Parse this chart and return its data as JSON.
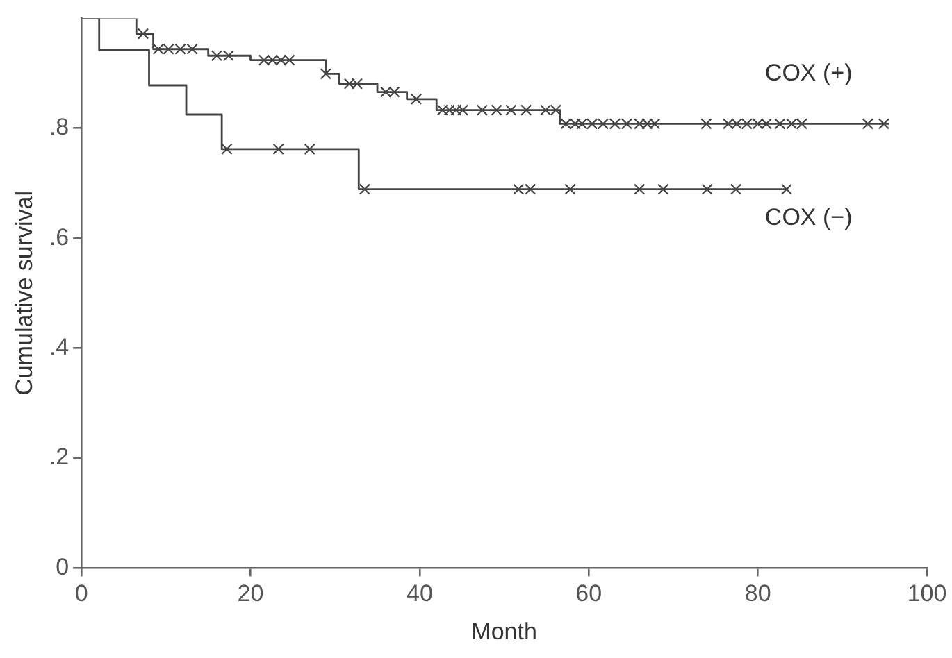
{
  "chart_data": {
    "type": "step",
    "xlabel": "Month",
    "ylabel": "Cumulative survival",
    "xlim": [
      0,
      100
    ],
    "xticks": [
      0,
      20,
      40,
      60,
      80,
      100
    ],
    "ylim": [
      0,
      1
    ],
    "yticks": [
      0,
      {
        "value": 0.2,
        "label": ".2"
      },
      {
        "value": 0.4,
        "label": ".4"
      },
      {
        "value": 0.6,
        "label": ".6"
      },
      {
        "value": 0.8,
        "label": ".8"
      }
    ],
    "grid": false,
    "legend": false,
    "series": [
      {
        "marker": "none",
        "color": "#444444",
        "x": [
          0,
          6.5,
          8.5,
          15,
          20,
          28.9,
          30.5,
          35,
          38.5,
          42,
          56.6,
          95.5
        ],
        "values": [
          1,
          0.972,
          0.944,
          0.932,
          0.924,
          0.899,
          0.881,
          0.866,
          0.853,
          0.833,
          0.808,
          0.808
        ]
      },
      {
        "type": "scatter",
        "marker": "cross",
        "color": "#444444",
        "x": [
          7.3,
          9.1,
          10.3,
          11.7,
          13.1,
          16.0,
          17.4,
          21.6,
          22.6,
          23.6,
          24.6,
          28.9,
          31.7,
          32.6,
          36,
          37,
          39.6,
          42.7,
          43.5,
          44.3,
          45.1,
          47.4,
          49.1,
          50.8,
          52.6,
          54.9,
          56.1,
          57.3,
          58.4,
          59.2,
          60.4,
          61.7,
          63.1,
          64.5,
          66.0,
          66.9,
          67.8,
          73.9,
          76.5,
          77.5,
          78.7,
          80.0,
          81.0,
          82.6,
          84.0,
          85.2,
          93.0,
          94.9
        ],
        "values": [
          0.972,
          0.944,
          0.944,
          0.944,
          0.944,
          0.932,
          0.932,
          0.924,
          0.924,
          0.924,
          0.924,
          0.899,
          0.881,
          0.881,
          0.866,
          0.866,
          0.853,
          0.833,
          0.833,
          0.833,
          0.833,
          0.833,
          0.833,
          0.833,
          0.833,
          0.833,
          0.833,
          0.808,
          0.808,
          0.808,
          0.808,
          0.808,
          0.808,
          0.808,
          0.808,
          0.808,
          0.808,
          0.808,
          0.808,
          0.808,
          0.808,
          0.808,
          0.808,
          0.808,
          0.808,
          0.808,
          0.808,
          0.808
        ]
      },
      {
        "marker": "none",
        "color": "#444444",
        "x": [
          0,
          2.1,
          8,
          12.4,
          16.6,
          32.8,
          83.4
        ],
        "values": [
          1,
          0.942,
          0.878,
          0.825,
          0.762,
          0.689,
          0.689
        ]
      },
      {
        "type": "scatter",
        "marker": "cross",
        "color": "#444444",
        "x": [
          17.2,
          23.3,
          27,
          33.5,
          51.7,
          53.1,
          57.8,
          66.0,
          68.8,
          74.0,
          77.4,
          83.4
        ],
        "values": [
          0.762,
          0.762,
          0.762,
          0.689,
          0.689,
          0.689,
          0.689,
          0.689,
          0.689,
          0.689,
          0.689,
          0.689
        ]
      }
    ],
    "annotations": [
      "COX (+)",
      "COX (−)"
    ]
  }
}
